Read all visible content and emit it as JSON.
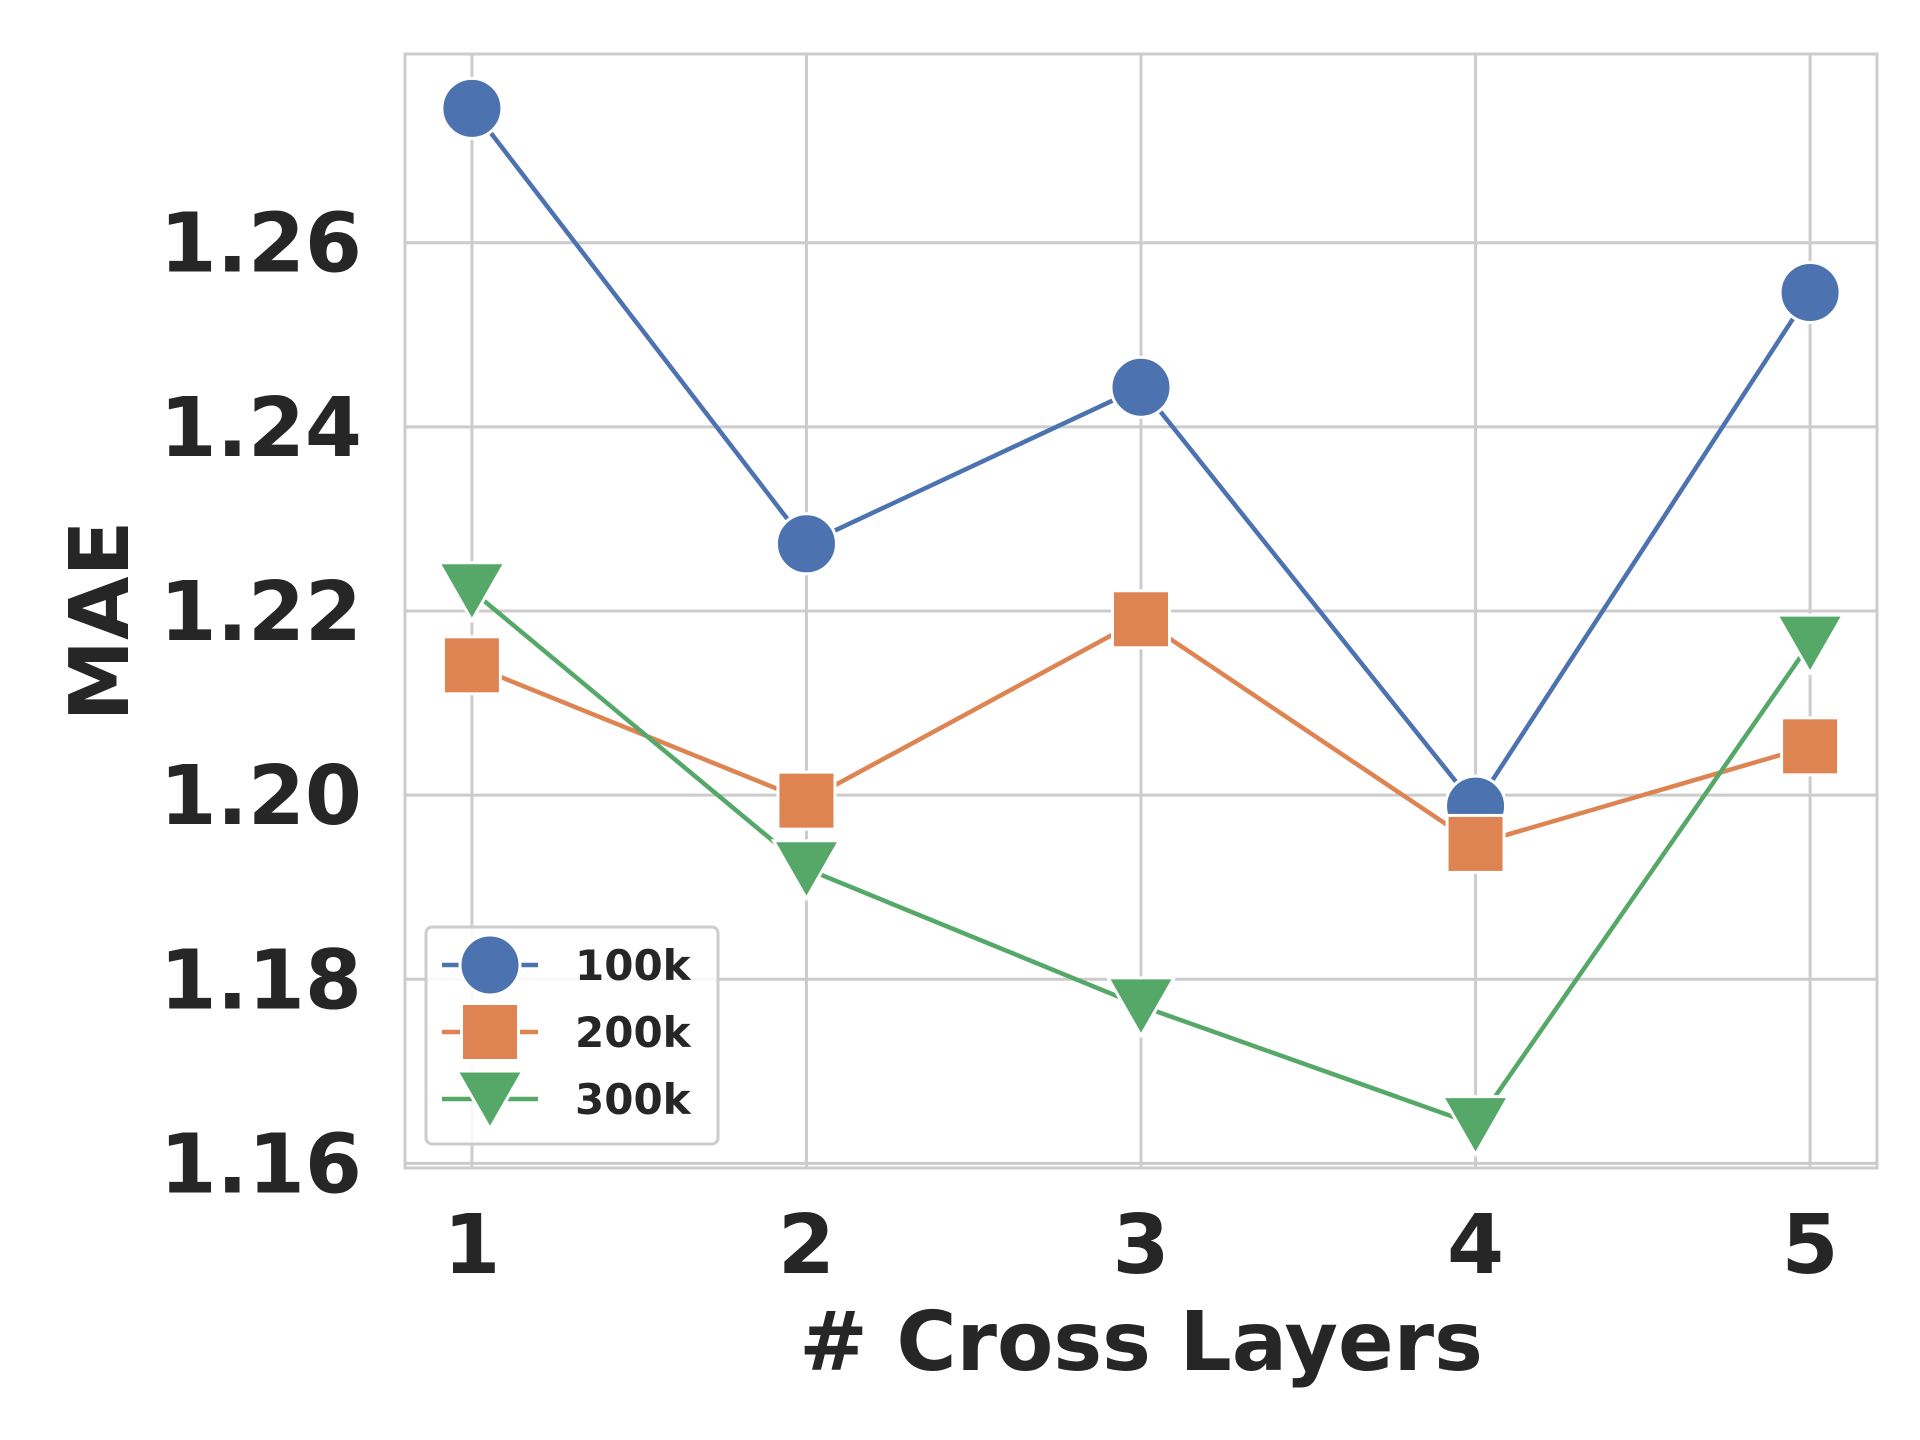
{
  "chart_data": {
    "type": "line",
    "title": "",
    "xlabel": "# Cross Layers",
    "ylabel": "MAE",
    "x": [
      1,
      2,
      3,
      4,
      5
    ],
    "x_tick_labels": [
      "1",
      "2",
      "3",
      "4",
      "5"
    ],
    "y_ticks": [
      1.16,
      1.18,
      1.2,
      1.22,
      1.24,
      1.26
    ],
    "y_tick_labels": [
      "1.16",
      "1.18",
      "1.20",
      "1.22",
      "1.24",
      "1.26"
    ],
    "xlim": [
      0.8,
      5.2
    ],
    "ylim": [
      1.1595,
      1.2805
    ],
    "grid": true,
    "legend_position": "lower-left",
    "series": [
      {
        "name": "100k",
        "color": "#4C72B0",
        "marker": "circle",
        "values": [
          1.2746,
          1.2273,
          1.2443,
          1.1988,
          1.2546
        ]
      },
      {
        "name": "200k",
        "color": "#DD8452",
        "marker": "square",
        "values": [
          1.2141,
          1.1994,
          1.2191,
          1.1947,
          1.2053
        ]
      },
      {
        "name": "300k",
        "color": "#55A868",
        "marker": "triangle-down",
        "values": [
          1.2222,
          1.192,
          1.1771,
          1.1642,
          1.2165
        ]
      }
    ]
  }
}
